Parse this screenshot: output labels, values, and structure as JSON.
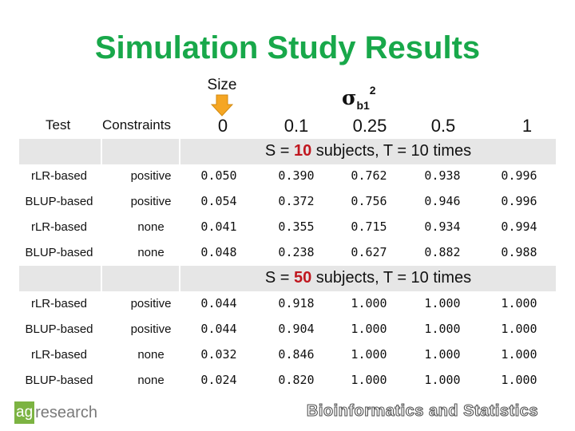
{
  "title": "Simulation Study Results",
  "size_label": "Size",
  "sigma": {
    "symbol": "σ",
    "sub": "b1",
    "sup": "2"
  },
  "headers": {
    "test": "Test",
    "constraints": "Constraints",
    "values": [
      "0",
      "0.1",
      "0.25",
      "0.5",
      "1"
    ]
  },
  "sections": [
    {
      "label_prefix": "S = ",
      "subjects": "10",
      "label_suffix": " subjects, T = 10 times",
      "rows": [
        {
          "method": "rLR-based",
          "constraint": "positive",
          "values": [
            "0.050",
            "0.390",
            "0.762",
            "0.938",
            "0.996"
          ]
        },
        {
          "method": "BLUP-based",
          "constraint": "positive",
          "values": [
            "0.054",
            "0.372",
            "0.756",
            "0.946",
            "0.996"
          ]
        },
        {
          "method": "rLR-based",
          "constraint": "none",
          "values": [
            "0.041",
            "0.355",
            "0.715",
            "0.934",
            "0.994"
          ]
        },
        {
          "method": "BLUP-based",
          "constraint": "none",
          "values": [
            "0.048",
            "0.238",
            "0.627",
            "0.882",
            "0.988"
          ]
        }
      ]
    },
    {
      "label_prefix": "S = ",
      "subjects": "50",
      "label_suffix": " subjects, T = 10 times",
      "rows": [
        {
          "method": "rLR-based",
          "constraint": "positive",
          "values": [
            "0.044",
            "0.918",
            "1.000",
            "1.000",
            "1.000"
          ]
        },
        {
          "method": "BLUP-based",
          "constraint": "positive",
          "values": [
            "0.044",
            "0.904",
            "1.000",
            "1.000",
            "1.000"
          ]
        },
        {
          "method": "rLR-based",
          "constraint": "none",
          "values": [
            "0.032",
            "0.846",
            "1.000",
            "1.000",
            "1.000"
          ]
        },
        {
          "method": "BLUP-based",
          "constraint": "none",
          "values": [
            "0.024",
            "0.820",
            "1.000",
            "1.000",
            "1.000"
          ]
        }
      ]
    }
  ],
  "logo": {
    "box": "ag",
    "rest": "research"
  },
  "footer": "Bioinformatics and Statistics",
  "colors": {
    "title": "#18a84a",
    "highlight": "#c0171f",
    "arrow": "#f5a623",
    "band": "#e6e6e6",
    "logo": "#7cb342"
  }
}
